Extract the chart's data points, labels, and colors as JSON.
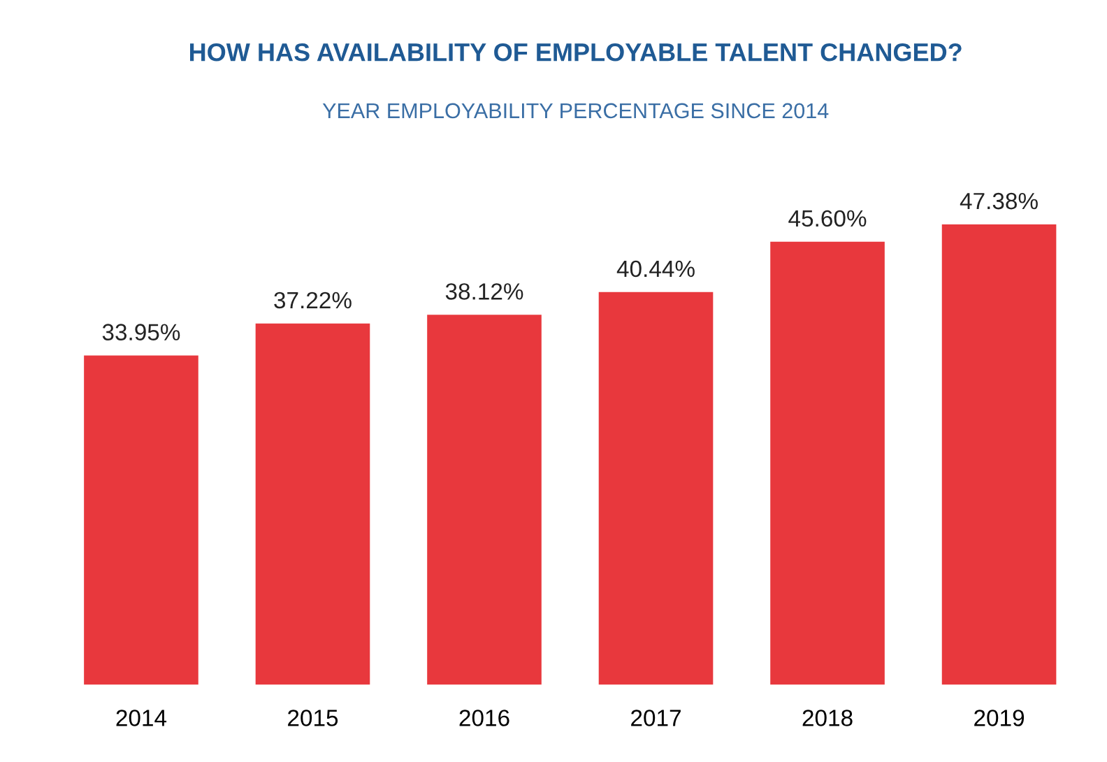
{
  "chart_data": {
    "type": "bar",
    "title": "HOW HAS AVAILABILITY OF EMPLOYABLE TALENT CHANGED?",
    "subtitle": "YEAR EMPLOYABILITY PERCENTAGE SINCE 2014",
    "categories": [
      "2014",
      "2015",
      "2016",
      "2017",
      "2018",
      "2019"
    ],
    "series": [
      {
        "color": "#e8383d",
        "values": [
          33.95,
          37.22,
          38.12,
          40.44,
          45.6,
          47.38
        ],
        "value_labels": [
          "33.95%",
          "37.22%",
          "38.12%",
          "40.44%",
          "45.60%",
          "47.38%"
        ]
      }
    ],
    "legend": false,
    "grid": false
  }
}
